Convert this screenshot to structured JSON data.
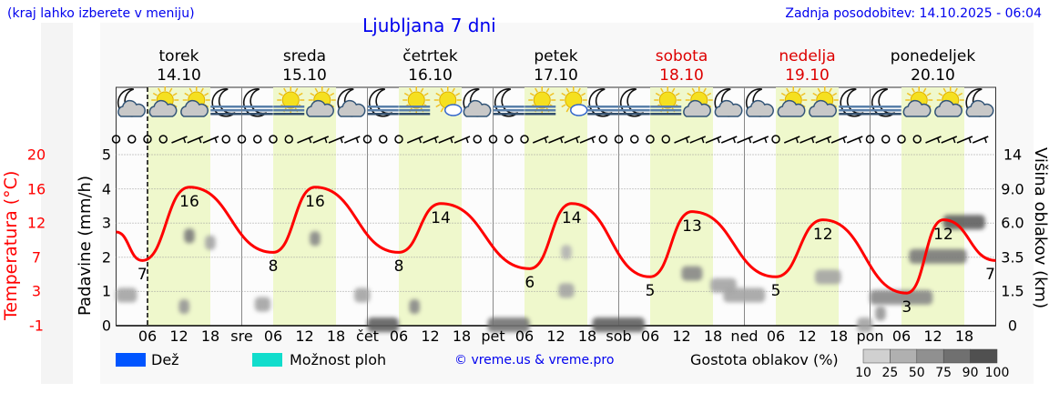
{
  "header": {
    "hint": "(kraj lahko izberete v meniju)",
    "title": "Ljubljana 7 dni",
    "updated": "Zadnja posodobitev: 14.10.2025 - 06:04"
  },
  "days": [
    {
      "name": "torek",
      "date": "14.10",
      "abbr": "",
      "weekend": false,
      "icons": [
        "moon-cloud",
        "sun-cloud",
        "sun-cloud",
        "moon-fog"
      ],
      "wind": [
        "calm",
        "calm",
        "calm",
        "calm",
        "barb",
        "barb",
        "barb",
        "calm"
      ]
    },
    {
      "name": "sreda",
      "date": "15.10",
      "abbr": "sre",
      "weekend": false,
      "icons": [
        "moon-fog",
        "sun-fog",
        "sun-cloud",
        "moon-cloud"
      ],
      "wind": [
        "calm",
        "calm",
        "calm",
        "calm",
        "barb",
        "barb",
        "barb",
        "barb"
      ]
    },
    {
      "name": "četrtek",
      "date": "16.10",
      "abbr": "čet",
      "weekend": false,
      "icons": [
        "moon-fog",
        "sun-fog",
        "sun-small-cloud",
        "moon-cloud"
      ],
      "wind": [
        "calm",
        "calm",
        "calm",
        "barb",
        "barb",
        "barb",
        "barb",
        "calm"
      ]
    },
    {
      "name": "petek",
      "date": "17.10",
      "abbr": "pet",
      "weekend": false,
      "icons": [
        "moon-fog",
        "sun-fog",
        "sun-small-cloud",
        "moon-fog"
      ],
      "wind": [
        "calm",
        "calm",
        "calm",
        "barb",
        "barb",
        "barb",
        "barb",
        "calm"
      ]
    },
    {
      "name": "sobota",
      "date": "18.10",
      "abbr": "sob",
      "weekend": true,
      "icons": [
        "moon-fog",
        "sun-fog",
        "sun-cloud",
        "moon-cloud"
      ],
      "wind": [
        "calm",
        "calm",
        "calm",
        "calm",
        "barb",
        "barb",
        "barb",
        "barb"
      ]
    },
    {
      "name": "nedelja",
      "date": "19.10",
      "abbr": "ned",
      "weekend": true,
      "icons": [
        "moon-cloud",
        "sun-cloud",
        "sun-cloud",
        "moon-fog"
      ],
      "wind": [
        "barb",
        "barb",
        "calm",
        "barb",
        "barb",
        "barb",
        "barb",
        "barb"
      ]
    },
    {
      "name": "ponedeljek",
      "date": "20.10",
      "abbr": "pon",
      "weekend": false,
      "icons": [
        "moon-fog",
        "sun-cloud",
        "sun-cloud",
        "moon-cloud"
      ],
      "wind": [
        "calm",
        "calm",
        "calm",
        "calm",
        "barb",
        "barb",
        "barb",
        "barb"
      ]
    }
  ],
  "hour_labels": [
    "06",
    "12",
    "18"
  ],
  "axes": {
    "temp_label": "Temperatura (°C)",
    "temp_ticks": [
      "-1",
      "3",
      "7",
      "12",
      "16",
      "20"
    ],
    "precip_label": "Padavine (mm/h)",
    "precip_ticks": [
      "0",
      "1",
      "2",
      "3",
      "4",
      "5"
    ],
    "cloud_label": "Višina oblakov (km)",
    "cloud_ticks": [
      "0",
      "1.5",
      "3.5",
      "6.0",
      "9.0",
      "14"
    ]
  },
  "temperature": {
    "points": [
      [
        0,
        0,
        10.5
      ],
      [
        0,
        5,
        7
      ],
      [
        0,
        14,
        16
      ],
      [
        1,
        6,
        8
      ],
      [
        1,
        14,
        16
      ],
      [
        2,
        6,
        8
      ],
      [
        2,
        14,
        14
      ],
      [
        3,
        7,
        6
      ],
      [
        3,
        15,
        14
      ],
      [
        4,
        6,
        5
      ],
      [
        4,
        14,
        13
      ],
      [
        5,
        6,
        5
      ],
      [
        5,
        15,
        12
      ],
      [
        6,
        7,
        3
      ],
      [
        6,
        14,
        12
      ],
      [
        7,
        0,
        7
      ]
    ],
    "labels": [
      [
        0,
        5,
        "7"
      ],
      [
        0,
        14,
        "16"
      ],
      [
        1,
        6,
        "8"
      ],
      [
        1,
        14,
        "16"
      ],
      [
        2,
        6,
        "8"
      ],
      [
        2,
        14,
        "14"
      ],
      [
        3,
        7,
        "6"
      ],
      [
        3,
        15,
        "14"
      ],
      [
        4,
        6,
        "5"
      ],
      [
        4,
        14,
        "13"
      ],
      [
        5,
        6,
        "5"
      ],
      [
        5,
        15,
        "12"
      ],
      [
        6,
        7,
        "3"
      ],
      [
        6,
        14,
        "12"
      ],
      [
        7,
        0,
        "7"
      ]
    ],
    "color": "#ff0000"
  },
  "cloud_patches": [
    [
      0,
      13,
      0.8,
      2,
      50
    ],
    [
      0,
      14,
      5,
      2,
      70
    ],
    [
      0,
      18,
      4.5,
      2,
      40
    ],
    [
      0,
      2,
      1.3,
      4,
      40
    ],
    [
      1,
      4,
      0.9,
      3,
      40
    ],
    [
      1,
      14,
      4.8,
      2,
      60
    ],
    [
      1,
      23,
      1.3,
      3,
      40
    ],
    [
      2,
      3,
      -0.1,
      6,
      90
    ],
    [
      2,
      9,
      0.8,
      2,
      60
    ],
    [
      3,
      3,
      -0.1,
      8,
      75
    ],
    [
      3,
      14,
      1.5,
      3,
      40
    ],
    [
      3,
      14,
      3.8,
      2,
      30
    ],
    [
      4,
      0,
      -0.1,
      10,
      90
    ],
    [
      4,
      14,
      2.5,
      4,
      60
    ],
    [
      4,
      20,
      1.8,
      5,
      40
    ],
    [
      5,
      0,
      1.3,
      8,
      40
    ],
    [
      5,
      16,
      2.3,
      5,
      40
    ],
    [
      5,
      23,
      0,
      3,
      40
    ],
    [
      6,
      2,
      0.5,
      2,
      50
    ],
    [
      6,
      6,
      1.2,
      12,
      60
    ],
    [
      6,
      13,
      3.5,
      11,
      70
    ],
    [
      6,
      18,
      6,
      8,
      90
    ]
  ],
  "legend": {
    "rain": "Dež",
    "showers": "Možnost ploh",
    "credit": "© vreme.us & vreme.pro",
    "density": "Gostota oblakov (%)",
    "density_steps": [
      "10",
      "25",
      "50",
      "75",
      "90",
      "100"
    ],
    "rain_color": "#0055ff",
    "showers_color": "#11ddcc"
  }
}
